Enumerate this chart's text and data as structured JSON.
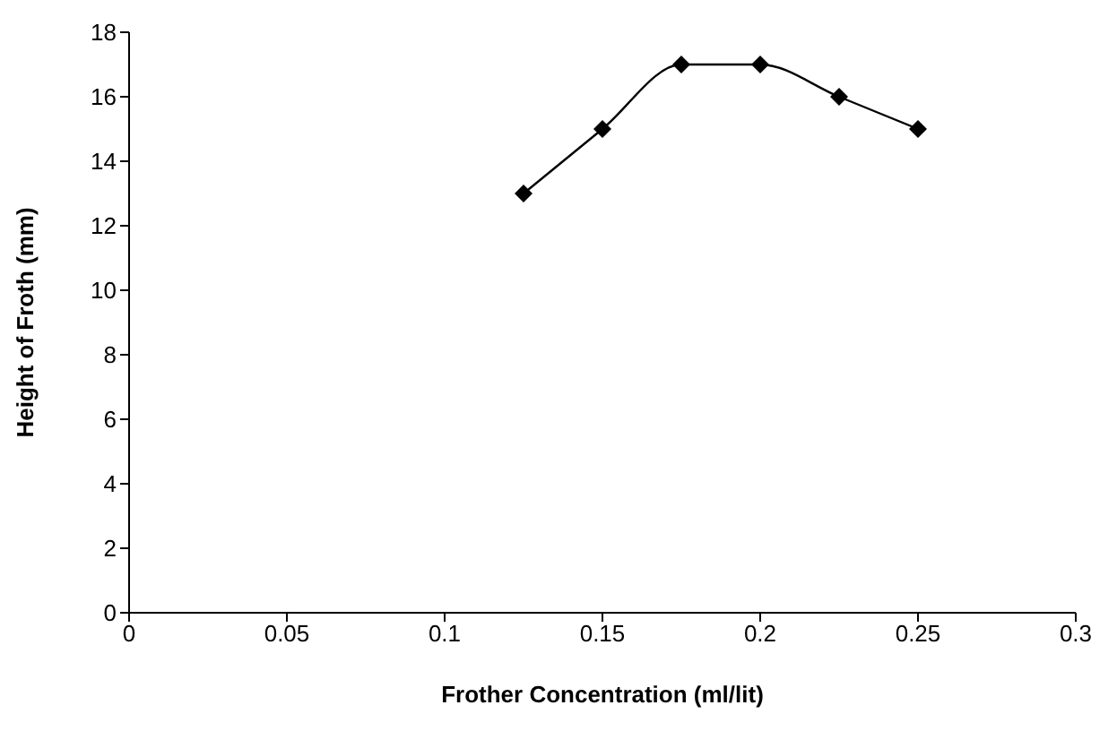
{
  "chart_data": {
    "type": "line",
    "xlabel": "Frother Concentration (ml/lit)",
    "ylabel": "Height of Froth (mm)",
    "x": [
      0.125,
      0.15,
      0.175,
      0.2,
      0.225,
      0.25
    ],
    "series": [
      {
        "color": "#000000",
        "values": [
          13,
          15,
          17,
          17,
          16,
          15
        ]
      }
    ],
    "xlim": [
      0,
      0.3
    ],
    "xticks": [
      0,
      0.05,
      0.1,
      0.15,
      0.2,
      0.25,
      0.3
    ],
    "ylim": [
      0,
      18
    ],
    "yticks": [
      0,
      2,
      4,
      6,
      8,
      10,
      12,
      14,
      16,
      18
    ],
    "marker": "diamond",
    "line_style": "solid",
    "grid": false,
    "legend": false
  }
}
